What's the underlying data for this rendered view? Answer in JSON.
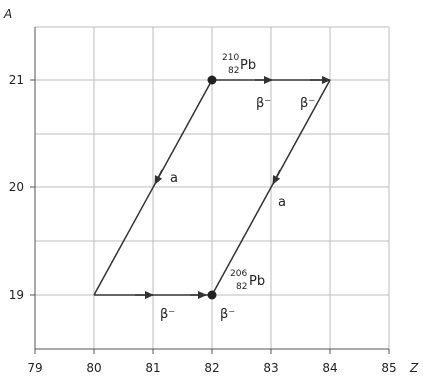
{
  "axes": {
    "x_label": "Z",
    "y_label": "A",
    "x_ticks": [
      "79",
      "80",
      "81",
      "82",
      "83",
      "84",
      "85"
    ],
    "y_ticks": [
      "19",
      "20",
      "21"
    ]
  },
  "isotopes": {
    "start": {
      "mass": "210",
      "atomic": "82",
      "symbol": "Pb"
    },
    "end": {
      "mass": "206",
      "atomic": "82",
      "symbol": "Pb"
    }
  },
  "labels": {
    "beta_top_left": "β⁻",
    "beta_top_right": "β⁻",
    "alpha_left": "a",
    "alpha_right": "a",
    "beta_bottom_left": "β⁻",
    "beta_bottom_right": "β⁻"
  },
  "colors": {
    "grid": "#bdbdbd",
    "arrow": "#333333",
    "point": "#222222"
  }
}
